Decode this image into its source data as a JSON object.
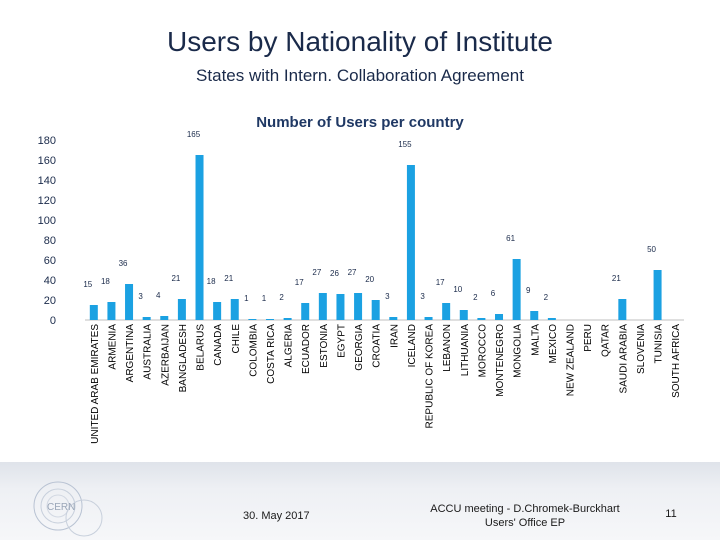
{
  "title": "Users by Nationality of Institute",
  "subtitle": "States with Intern. Collaboration Agreement",
  "footer": {
    "date": "30. May 2017",
    "meeting_line1": "ACCU meeting - D.Chromek-Burckhart",
    "meeting_line2": "Users' Office EP",
    "page": "11",
    "logo_text": "CERN"
  },
  "colors": {
    "bar": "#1ba1e2",
    "text": "#1a2a4a",
    "axis": "#bfbfbf"
  },
  "chart_data": {
    "type": "bar",
    "title": "Number of Users per country",
    "xlabel": "",
    "ylabel": "",
    "ylim": [
      0,
      180
    ],
    "yticks": [
      0,
      20,
      40,
      60,
      80,
      100,
      120,
      140,
      160,
      180
    ],
    "categories": [
      "UNITED ARAB EMIRATES",
      "ARMENIA",
      "ARGENTINA",
      "AUSTRALIA",
      "AZERBAIJAN",
      "BANGLADESH",
      "BELARUS",
      "CANADA",
      "CHILE",
      "COLOMBIA",
      "COSTA RICA",
      "ALGERIA",
      "ECUADOR",
      "ESTONIA",
      "EGYPT",
      "GEORGIA",
      "CROATIA",
      "IRAN",
      "ICELAND",
      "REPUBLIC OF KOREA",
      "LEBANON",
      "LITHUANIA",
      "MOROCCO",
      "MONTENEGRO",
      "MONGOLIA",
      "MALTA",
      "MEXICO",
      "NEW ZEALAND",
      "PERU",
      "QATAR",
      "SAUDI ARABIA",
      "SLOVENIA",
      "TUNISIA",
      "SOUTH AFRICA"
    ],
    "values": [
      15,
      18,
      36,
      3,
      4,
      21,
      165,
      18,
      21,
      1,
      1,
      2,
      17,
      27,
      26,
      27,
      20,
      3,
      155,
      3,
      17,
      10,
      2,
      6,
      61,
      9,
      2,
      0,
      0,
      0,
      21,
      0,
      50,
      null
    ],
    "labels": [
      "15",
      "18",
      "36",
      "3",
      "4",
      "21",
      "165",
      "18",
      "21",
      "1",
      "1",
      "2",
      "17",
      "27",
      "26",
      "27",
      "20",
      "3",
      "155",
      "3",
      "17",
      "10",
      "2",
      "6",
      "61",
      "9",
      "2",
      "",
      "",
      "",
      "21",
      "",
      "50",
      ""
    ],
    "grid": false,
    "legend": "none"
  }
}
